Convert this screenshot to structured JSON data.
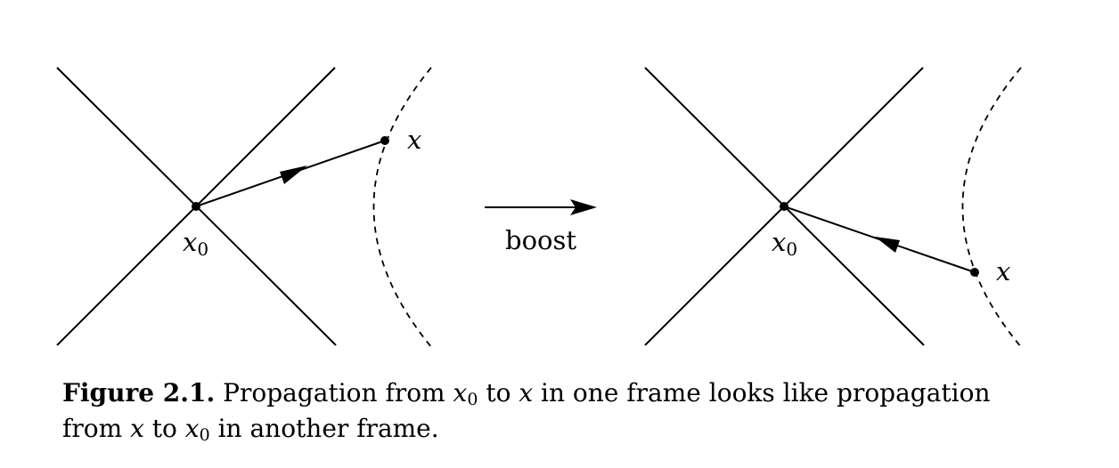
{
  "figure": {
    "left_panel": {
      "origin_label": "x",
      "origin_subscript": "0",
      "endpoint_label": "x"
    },
    "transition": {
      "label": "boost"
    },
    "right_panel": {
      "origin_label": "x",
      "origin_subscript": "0",
      "endpoint_label": "x"
    }
  },
  "caption": {
    "number": "Figure 2.1.",
    "part1": "Propagation from",
    "var_a": "x",
    "var_a_sub": "0",
    "part2": "to",
    "var_b": "x",
    "part3": "in one frame looks like propagation",
    "part4": "from",
    "var_c": "x",
    "part5": "to",
    "var_d": "x",
    "var_d_sub": "0",
    "part6": "in another frame."
  }
}
